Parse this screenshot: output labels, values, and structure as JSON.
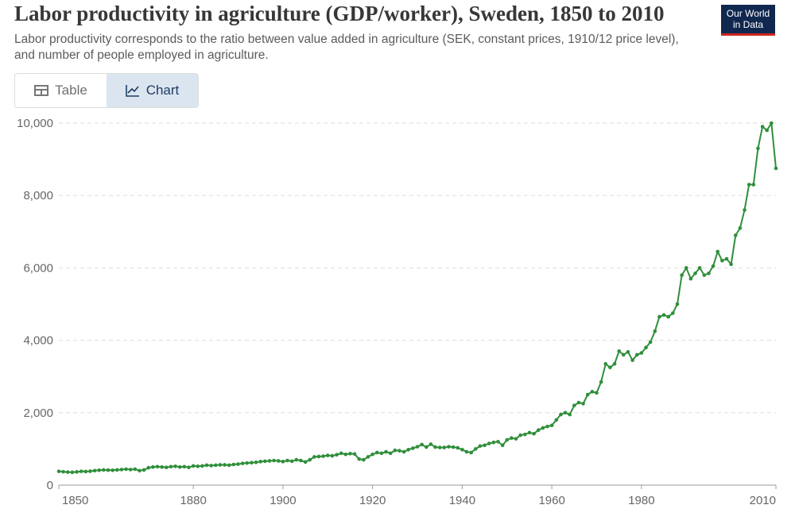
{
  "header": {
    "title": "Labor productivity in agriculture (GDP/worker), Sweden, 1850 to 2010",
    "subtitle": "Labor productivity corresponds to the ratio between value added in agriculture (SEK, constant prices, 1910/12 price level), and number of people employed in agriculture.",
    "logo": [
      "Our World",
      "in Data"
    ]
  },
  "tabs": [
    "Table",
    "Chart"
  ],
  "chart_data": {
    "type": "line",
    "x": [
      1850,
      1851,
      1852,
      1853,
      1854,
      1855,
      1856,
      1857,
      1858,
      1859,
      1860,
      1861,
      1862,
      1863,
      1864,
      1865,
      1866,
      1867,
      1868,
      1869,
      1870,
      1871,
      1872,
      1873,
      1874,
      1875,
      1876,
      1877,
      1878,
      1879,
      1880,
      1881,
      1882,
      1883,
      1884,
      1885,
      1886,
      1887,
      1888,
      1889,
      1890,
      1891,
      1892,
      1893,
      1894,
      1895,
      1896,
      1897,
      1898,
      1899,
      1900,
      1901,
      1902,
      1903,
      1904,
      1905,
      1906,
      1907,
      1908,
      1909,
      1910,
      1911,
      1912,
      1913,
      1914,
      1915,
      1916,
      1917,
      1918,
      1919,
      1920,
      1921,
      1922,
      1923,
      1924,
      1925,
      1926,
      1927,
      1928,
      1929,
      1930,
      1931,
      1932,
      1933,
      1934,
      1935,
      1936,
      1937,
      1938,
      1939,
      1940,
      1941,
      1942,
      1943,
      1944,
      1945,
      1946,
      1947,
      1948,
      1949,
      1950,
      1951,
      1952,
      1953,
      1954,
      1955,
      1956,
      1957,
      1958,
      1959,
      1960,
      1961,
      1962,
      1963,
      1964,
      1965,
      1966,
      1967,
      1968,
      1969,
      1970,
      1971,
      1972,
      1973,
      1974,
      1975,
      1976,
      1977,
      1978,
      1979,
      1980,
      1981,
      1982,
      1983,
      1984,
      1985,
      1986,
      1987,
      1988,
      1989,
      1990,
      1991,
      1992,
      1993,
      1994,
      1995,
      1996,
      1997,
      1998,
      1999,
      2000,
      2001,
      2002,
      2003,
      2004,
      2005,
      2006,
      2007,
      2008,
      2009,
      2010
    ],
    "series": [
      {
        "name": "Sweden",
        "color": "#2f8f3a",
        "values": [
          380,
          370,
          360,
          355,
          365,
          380,
          375,
          385,
          400,
          410,
          420,
          415,
          410,
          420,
          430,
          440,
          430,
          440,
          400,
          420,
          480,
          500,
          510,
          500,
          490,
          510,
          520,
          500,
          510,
          490,
          530,
          520,
          530,
          550,
          540,
          550,
          560,
          560,
          550,
          570,
          580,
          600,
          610,
          620,
          630,
          650,
          660,
          670,
          680,
          670,
          650,
          680,
          660,
          700,
          680,
          640,
          700,
          780,
          790,
          800,
          820,
          810,
          840,
          880,
          850,
          870,
          860,
          720,
          700,
          780,
          850,
          900,
          880,
          920,
          880,
          960,
          950,
          920,
          980,
          1020,
          1060,
          1120,
          1050,
          1130,
          1050,
          1040,
          1040,
          1060,
          1050,
          1030,
          980,
          920,
          900,
          1000,
          1080,
          1100,
          1150,
          1180,
          1200,
          1100,
          1250,
          1300,
          1280,
          1380,
          1400,
          1450,
          1420,
          1520,
          1580,
          1620,
          1650,
          1800,
          1950,
          2000,
          1950,
          2200,
          2280,
          2250,
          2500,
          2580,
          2550,
          2850,
          3350,
          3250,
          3350,
          3700,
          3600,
          3680,
          3450,
          3600,
          3650,
          3800,
          3950,
          4250,
          4650,
          4700,
          4650,
          4750,
          5000,
          5800,
          6000,
          5700,
          5850,
          6000,
          5800,
          5850,
          6050,
          6450,
          6200,
          6250,
          6100,
          6900,
          7100,
          7600,
          8300,
          8300,
          9300,
          9900,
          9800,
          10000,
          8750
        ]
      }
    ],
    "xlim": [
      1850,
      2010
    ],
    "xticks": [
      1850,
      1880,
      1900,
      1920,
      1940,
      1960,
      1980,
      2010
    ],
    "ylim": [
      0,
      10000
    ],
    "yticks": [
      0,
      {
        "value": 2000,
        "label": "2,000"
      },
      {
        "value": 4000,
        "label": "4,000"
      },
      {
        "value": 6000,
        "label": "6,000"
      },
      {
        "value": 8000,
        "label": "8,000"
      },
      {
        "value": 10000,
        "label": "10,000"
      }
    ],
    "grid": true
  }
}
